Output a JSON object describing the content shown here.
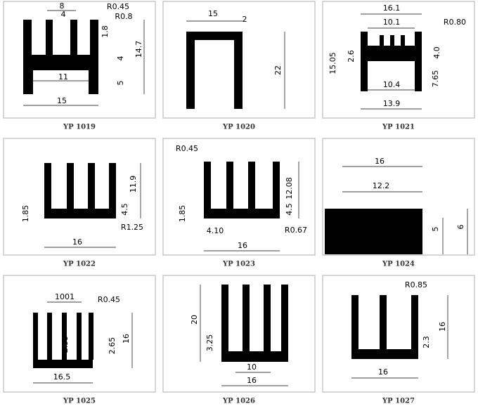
{
  "panels": [
    {
      "caption": "YP 1019",
      "dims": [
        "8",
        "4",
        "R0.45",
        "R0.8",
        "1.8",
        "4",
        "14.7",
        "11",
        "5",
        "15"
      ]
    },
    {
      "caption": "YP 1020",
      "dims": [
        "15",
        "2",
        "22"
      ]
    },
    {
      "caption": "YP 1021",
      "dims": [
        "16.1",
        "10.1",
        "R0.80",
        "15.05",
        "2.6",
        "4.0",
        "7.65",
        "10.4",
        "13.9"
      ]
    },
    {
      "caption": "YP 1022",
      "dims": [
        "11.9",
        "4.5",
        "1.85",
        "R1.25",
        "16"
      ]
    },
    {
      "caption": "YP 1023",
      "dims": [
        "R0.45",
        "12.08",
        "4.5",
        "1.85",
        "4.10",
        "R0.67",
        "16"
      ]
    },
    {
      "caption": "YP 1024",
      "dims": [
        "16",
        "12.2",
        "5",
        "6"
      ]
    },
    {
      "caption": "YP 1025",
      "dims": [
        "1001",
        "R0.45",
        "2.55",
        "2.65",
        "16",
        "16.5"
      ]
    },
    {
      "caption": "YP 1026",
      "dims": [
        "20",
        "3.25",
        "10",
        "16"
      ]
    },
    {
      "caption": "YP 1027",
      "dims": [
        "R0.85",
        "16",
        "2.3",
        "16"
      ]
    }
  ]
}
